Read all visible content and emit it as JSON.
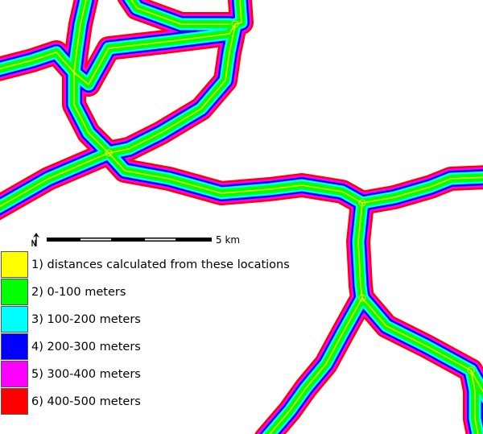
{
  "map": {
    "band_colors": [
      "#ff0000",
      "#ff00ff",
      "#0000ff",
      "#00ffff",
      "#00ff00"
    ],
    "source_color": "#ffff00"
  },
  "scale": {
    "label": "5 km",
    "north_icon": "north-arrow-icon"
  },
  "legend": {
    "items": [
      {
        "label": "1) distances calculated from these locations",
        "color": "#ffff00"
      },
      {
        "label": "2) 0-100 meters",
        "color": "#00ff00"
      },
      {
        "label": "3) 100-200 meters",
        "color": "#00ffff"
      },
      {
        "label": "4) 200-300 meters",
        "color": "#0000ff"
      },
      {
        "label": "5) 300-400 meters",
        "color": "#ff00ff"
      },
      {
        "label": "6) 400-500 meters",
        "color": "#ff0000"
      }
    ]
  }
}
